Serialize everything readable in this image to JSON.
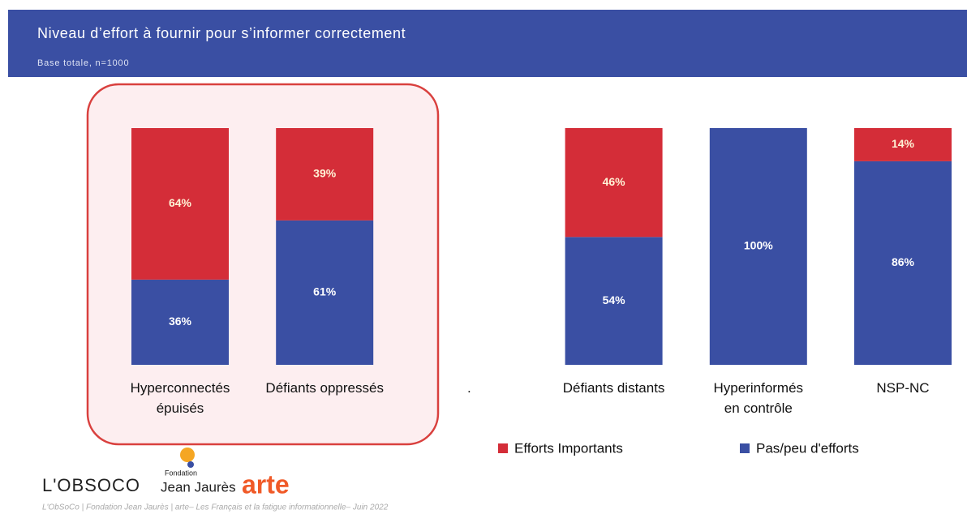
{
  "chart_data": {
    "type": "stacked_bar",
    "title": "Niveau d’effort à fournir pour s’informer correctement",
    "subtitle": "Base totale, n=1000",
    "categories": [
      "Hyperconnectés\népuisés",
      "Défiants oppressés",
      ".",
      "Défiants distants",
      "Hyperinformés\nen contrôle",
      "NSP-NC"
    ],
    "series": [
      {
        "name": "Pas/peu d'efforts",
        "color": "#3a4fa3",
        "values": [
          36,
          61,
          null,
          54,
          100,
          86
        ],
        "value_labels": [
          "36%",
          "61%",
          null,
          "54%",
          "100%",
          "86%"
        ]
      },
      {
        "name": "Efforts Importants",
        "color": "#d42d38",
        "values": [
          64,
          39,
          null,
          46,
          null,
          14
        ],
        "value_labels": [
          "64%",
          "39%",
          null,
          "46%",
          null,
          "14%"
        ]
      }
    ],
    "legend_order": [
      1,
      0
    ],
    "logos": {
      "obsoco": "L'OBSOCO",
      "fondation": "Fondation",
      "jaures": "Jean Jaurès",
      "arte": "arte"
    },
    "footer": "L'ObSoCo | Fondation Jean Jaurès | arte– Les Français et la fatigue informationnelle– Juin 2022"
  }
}
